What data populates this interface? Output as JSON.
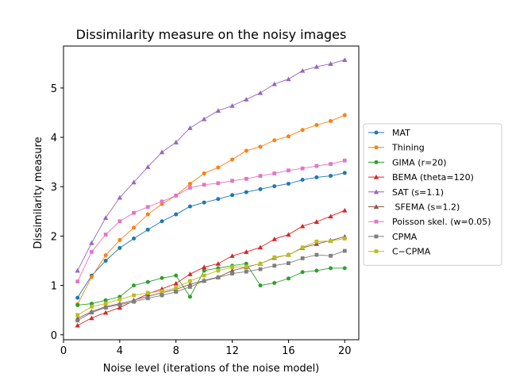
{
  "chart_data": {
    "type": "line",
    "title": "Dissimilarity measure on the noisy images",
    "xlabel": "Noise level (iterations of the noise model)",
    "ylabel": "Dissimilarity measure",
    "xlim": [
      0,
      21
    ],
    "ylim": [
      -0.1,
      5.85
    ],
    "xticks": [
      0,
      4,
      8,
      12,
      16,
      20
    ],
    "yticks": [
      0,
      1,
      2,
      3,
      4,
      5
    ],
    "grid": false,
    "legend_position": "right",
    "x": [
      1,
      2,
      3,
      4,
      5,
      6,
      7,
      8,
      9,
      10,
      11,
      12,
      13,
      14,
      15,
      16,
      17,
      18,
      19,
      20
    ],
    "series": [
      {
        "name": "MAT",
        "color": "#1f77b4",
        "marker": "circle",
        "values": [
          0.75,
          1.2,
          1.5,
          1.76,
          1.95,
          2.13,
          2.3,
          2.44,
          2.6,
          2.68,
          2.75,
          2.83,
          2.89,
          2.95,
          3.01,
          3.06,
          3.14,
          3.19,
          3.22,
          3.28
        ]
      },
      {
        "name": "Thining",
        "color": "#ff7f0e",
        "marker": "circle",
        "values": [
          0.62,
          1.17,
          1.61,
          1.92,
          2.17,
          2.44,
          2.65,
          2.82,
          3.06,
          3.27,
          3.39,
          3.55,
          3.73,
          3.81,
          3.94,
          4.02,
          4.15,
          4.25,
          4.33,
          4.45
        ]
      },
      {
        "name": "GIMA (r=20)",
        "color": "#2ca02c",
        "marker": "circle",
        "values": [
          0.6,
          0.63,
          0.7,
          0.77,
          1.0,
          1.07,
          1.15,
          1.2,
          0.77,
          1.3,
          1.35,
          1.4,
          1.44,
          1.0,
          1.05,
          1.14,
          1.27,
          1.3,
          1.35,
          1.35
        ]
      },
      {
        "name": "BEMA (theta=120)",
        "color": "#d62728",
        "marker": "triangle",
        "values": [
          0.19,
          0.34,
          0.45,
          0.55,
          0.69,
          0.83,
          0.93,
          1.04,
          1.23,
          1.37,
          1.44,
          1.6,
          1.68,
          1.77,
          1.94,
          2.03,
          2.2,
          2.29,
          2.4,
          2.52
        ]
      },
      {
        "name": "SAT (s=1.1)",
        "color": "#9467bd",
        "marker": "triangle",
        "values": [
          1.3,
          1.86,
          2.37,
          2.78,
          3.09,
          3.4,
          3.7,
          3.9,
          4.19,
          4.37,
          4.54,
          4.64,
          4.77,
          4.9,
          5.08,
          5.18,
          5.35,
          5.43,
          5.49,
          5.57
        ]
      },
      {
        "name": " SFEMA (s=1.2)",
        "color": "#8c564b",
        "marker": "triangle",
        "values": [
          0.33,
          0.47,
          0.57,
          0.63,
          0.7,
          0.78,
          0.85,
          0.92,
          1.02,
          1.1,
          1.17,
          1.3,
          1.37,
          1.44,
          1.56,
          1.62,
          1.76,
          1.84,
          1.91,
          1.99
        ]
      },
      {
        "name": "Poisson skel. (w=0.05)",
        "color": "#e377c2",
        "marker": "square",
        "values": [
          1.08,
          1.68,
          2.03,
          2.3,
          2.47,
          2.59,
          2.7,
          2.82,
          2.98,
          3.04,
          3.07,
          3.12,
          3.16,
          3.22,
          3.27,
          3.33,
          3.37,
          3.42,
          3.46,
          3.53
        ]
      },
      {
        "name": "CPMA",
        "color": "#7f7f7f",
        "marker": "square",
        "values": [
          0.29,
          0.45,
          0.55,
          0.61,
          0.67,
          0.74,
          0.8,
          0.87,
          0.97,
          1.09,
          1.16,
          1.24,
          1.28,
          1.33,
          1.4,
          1.45,
          1.55,
          1.62,
          1.6,
          1.7
        ]
      },
      {
        "name": "C−CPMA",
        "color": "#bcbd22",
        "marker": "square",
        "values": [
          0.4,
          0.57,
          0.63,
          0.72,
          0.8,
          0.85,
          0.88,
          0.95,
          1.09,
          1.2,
          1.3,
          1.37,
          1.38,
          1.44,
          1.57,
          1.62,
          1.77,
          1.89,
          1.9,
          1.95
        ]
      }
    ]
  }
}
